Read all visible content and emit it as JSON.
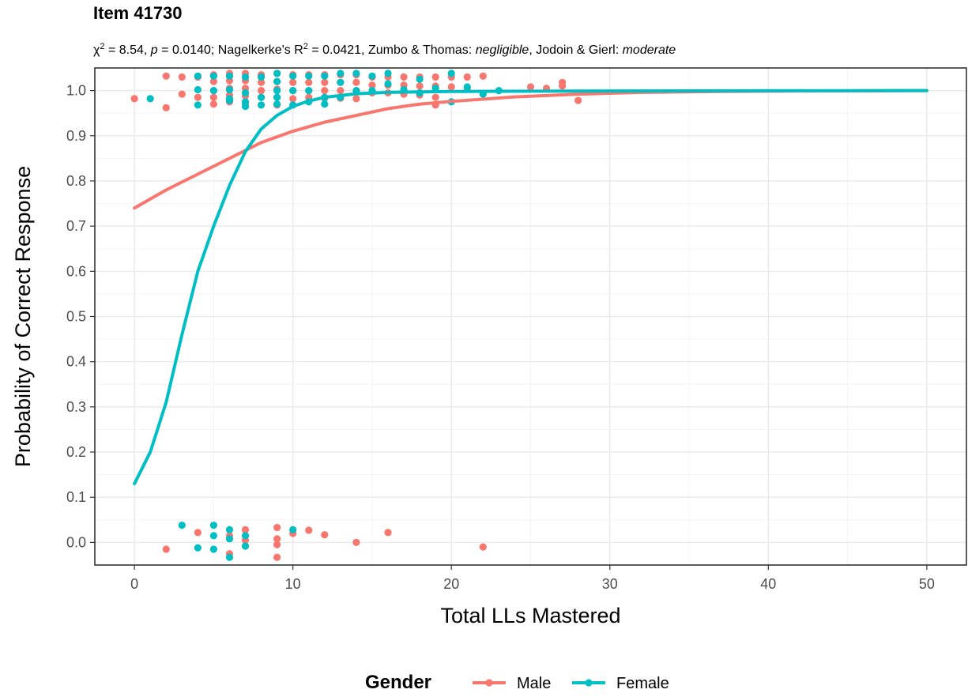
{
  "title": "Item 41730",
  "subtitle": {
    "chi_symbol": "χ",
    "chi_sup": "2",
    "part1": " = 8.54, ",
    "p_label": "p",
    "part2": " = 0.0140; Nagelkerke's R",
    "r_sup": "2",
    "part3": " = 0.0421, Zumbo & Thomas: ",
    "zumbo_class": "negligible",
    "part4": ", Jodoin & Gierl: ",
    "jodoin_class": "moderate"
  },
  "colors": {
    "male": "#F8766D",
    "female": "#00BFC4",
    "grid_major": "#EBEBEB",
    "grid_minor": "#F5F5F5",
    "panel_border": "#333333",
    "tick_text": "#4D4D4D"
  },
  "chart_data": {
    "type": "scatter",
    "xlabel": "Total LLs Mastered",
    "ylabel": "Probability of Correct Response",
    "xlim": [
      -2.5,
      52.5
    ],
    "ylim": [
      -0.05,
      1.05
    ],
    "x_ticks": [
      "0",
      "10",
      "20",
      "30",
      "40",
      "50"
    ],
    "x_tick_values": [
      0,
      10,
      20,
      30,
      40,
      50
    ],
    "y_ticks": [
      "0.0",
      "0.1",
      "0.2",
      "0.3",
      "0.4",
      "0.5",
      "0.6",
      "0.7",
      "0.8",
      "0.9",
      "1.0"
    ],
    "y_tick_values": [
      0.0,
      0.1,
      0.2,
      0.3,
      0.4,
      0.5,
      0.6,
      0.7,
      0.8,
      0.9,
      1.0
    ],
    "grid": true,
    "legend": {
      "title": "Gender",
      "position": "bottom",
      "entries": [
        "Male",
        "Female"
      ]
    },
    "series": [
      {
        "name": "Male",
        "color_key": "male",
        "curve": [
          [
            0,
            0.74
          ],
          [
            2,
            0.78
          ],
          [
            4,
            0.815
          ],
          [
            6,
            0.85
          ],
          [
            8,
            0.885
          ],
          [
            10,
            0.91
          ],
          [
            12,
            0.93
          ],
          [
            14,
            0.945
          ],
          [
            16,
            0.96
          ],
          [
            18,
            0.97
          ],
          [
            20,
            0.976
          ],
          [
            24,
            0.986
          ],
          [
            28,
            0.992
          ],
          [
            32,
            0.996
          ],
          [
            37,
            0.998
          ],
          [
            42,
            0.999
          ],
          [
            50,
            1.0
          ]
        ],
        "points": [
          [
            0,
            0.982
          ],
          [
            2,
            1.032
          ],
          [
            2,
            0.962
          ],
          [
            3,
            1.03
          ],
          [
            3,
            0.992
          ],
          [
            4,
            1.03
          ],
          [
            4,
            0.985
          ],
          [
            5,
            1.035
          ],
          [
            5,
            1.02
          ],
          [
            5,
            1.0
          ],
          [
            5,
            0.985
          ],
          [
            5,
            0.97
          ],
          [
            6,
            1.038
          ],
          [
            6,
            1.022
          ],
          [
            6,
            1.005
          ],
          [
            6,
            0.99
          ],
          [
            6,
            0.975
          ],
          [
            7,
            1.038
          ],
          [
            7,
            1.022
          ],
          [
            7,
            1.005
          ],
          [
            7,
            0.988
          ],
          [
            7,
            0.972
          ],
          [
            8,
            1.035
          ],
          [
            8,
            1.018
          ],
          [
            8,
            1.0
          ],
          [
            8,
            0.985
          ],
          [
            9,
            1.038
          ],
          [
            9,
            1.02
          ],
          [
            9,
            1.003
          ],
          [
            9,
            0.985
          ],
          [
            9,
            0.968
          ],
          [
            10,
            1.035
          ],
          [
            10,
            1.018
          ],
          [
            10,
            1.0
          ],
          [
            10,
            0.982
          ],
          [
            10,
            0.968
          ],
          [
            11,
            1.035
          ],
          [
            11,
            1.018
          ],
          [
            11,
            1.0
          ],
          [
            11,
            0.985
          ],
          [
            12,
            1.035
          ],
          [
            12,
            1.018
          ],
          [
            12,
            1.0
          ],
          [
            12,
            0.983
          ],
          [
            13,
            1.035
          ],
          [
            13,
            1.018
          ],
          [
            13,
            1.0
          ],
          [
            13,
            0.983
          ],
          [
            14,
            1.035
          ],
          [
            14,
            1.018
          ],
          [
            14,
            1.0
          ],
          [
            14,
            0.982
          ],
          [
            15,
            1.03
          ],
          [
            15,
            1.012
          ],
          [
            15,
            0.995
          ],
          [
            16,
            1.03
          ],
          [
            16,
            1.012
          ],
          [
            16,
            0.995
          ],
          [
            17,
            1.03
          ],
          [
            17,
            1.012
          ],
          [
            17,
            0.992
          ],
          [
            18,
            1.03
          ],
          [
            18,
            1.01
          ],
          [
            18,
            0.99
          ],
          [
            19,
            1.03
          ],
          [
            19,
            1.01
          ],
          [
            19,
            0.985
          ],
          [
            19,
            0.968
          ],
          [
            20,
            1.03
          ],
          [
            20,
            1.008
          ],
          [
            21,
            1.03
          ],
          [
            21,
            1.005
          ],
          [
            22,
            1.032
          ],
          [
            25,
            1.008
          ],
          [
            26,
            1.005
          ],
          [
            27,
            1.018
          ],
          [
            27,
            1.01
          ],
          [
            28,
            0.978
          ],
          [
            2,
            -0.015
          ],
          [
            4,
            0.022
          ],
          [
            6,
            0.015
          ],
          [
            6,
            -0.025
          ],
          [
            7,
            0.028
          ],
          [
            7,
            0.005
          ],
          [
            7,
            -0.008
          ],
          [
            9,
            0.033
          ],
          [
            9,
            0.008
          ],
          [
            9,
            -0.005
          ],
          [
            9,
            -0.033
          ],
          [
            10,
            0.02
          ],
          [
            11,
            0.027
          ],
          [
            12,
            0.017
          ],
          [
            14,
            0.0
          ],
          [
            16,
            0.022
          ],
          [
            22,
            -0.01
          ]
        ]
      },
      {
        "name": "Female",
        "color_key": "female",
        "curve": [
          [
            0,
            0.13
          ],
          [
            1,
            0.2
          ],
          [
            2,
            0.31
          ],
          [
            3,
            0.46
          ],
          [
            4,
            0.6
          ],
          [
            5,
            0.7
          ],
          [
            6,
            0.79
          ],
          [
            7,
            0.865
          ],
          [
            8,
            0.915
          ],
          [
            9,
            0.945
          ],
          [
            10,
            0.965
          ],
          [
            11,
            0.977
          ],
          [
            12,
            0.985
          ],
          [
            14,
            0.993
          ],
          [
            16,
            0.996
          ],
          [
            20,
            0.998
          ],
          [
            30,
            0.999
          ],
          [
            50,
            1.0
          ]
        ],
        "points": [
          [
            1,
            0.982
          ],
          [
            4,
            1.032
          ],
          [
            4,
            1.002
          ],
          [
            4,
            0.968
          ],
          [
            5,
            1.032
          ],
          [
            5,
            1.0
          ],
          [
            6,
            1.032
          ],
          [
            6,
            1.002
          ],
          [
            6,
            0.982
          ],
          [
            6,
            0.978
          ],
          [
            7,
            1.03
          ],
          [
            7,
            0.995
          ],
          [
            7,
            0.975
          ],
          [
            7,
            0.965
          ],
          [
            8,
            1.03
          ],
          [
            8,
            0.985
          ],
          [
            8,
            0.968
          ],
          [
            9,
            1.038
          ],
          [
            9,
            1.02
          ],
          [
            9,
            1.0
          ],
          [
            9,
            0.985
          ],
          [
            9,
            0.97
          ],
          [
            10,
            1.032
          ],
          [
            10,
            1.0
          ],
          [
            10,
            0.968
          ],
          [
            11,
            1.032
          ],
          [
            11,
            1.0
          ],
          [
            11,
            0.975
          ],
          [
            12,
            1.032
          ],
          [
            12,
            0.985
          ],
          [
            12,
            0.97
          ],
          [
            13,
            1.038
          ],
          [
            13,
            1.018
          ],
          [
            13,
            0.985
          ],
          [
            14,
            1.038
          ],
          [
            14,
            1.0
          ],
          [
            15,
            1.032
          ],
          [
            15,
            1.0
          ],
          [
            16,
            1.038
          ],
          [
            16,
            1.015
          ],
          [
            17,
            1.002
          ],
          [
            18,
            1.025
          ],
          [
            18,
            0.995
          ],
          [
            19,
            1.005
          ],
          [
            20,
            1.038
          ],
          [
            20,
            0.975
          ],
          [
            21,
            1.008
          ],
          [
            22,
            0.992
          ],
          [
            23,
            1.0
          ],
          [
            3,
            0.038
          ],
          [
            4,
            -0.012
          ],
          [
            5,
            0.038
          ],
          [
            5,
            0.015
          ],
          [
            5,
            -0.015
          ],
          [
            6,
            0.028
          ],
          [
            6,
            0.008
          ],
          [
            6,
            -0.033
          ],
          [
            7,
            0.015
          ],
          [
            7,
            -0.008
          ],
          [
            10,
            0.028
          ]
        ]
      }
    ]
  }
}
